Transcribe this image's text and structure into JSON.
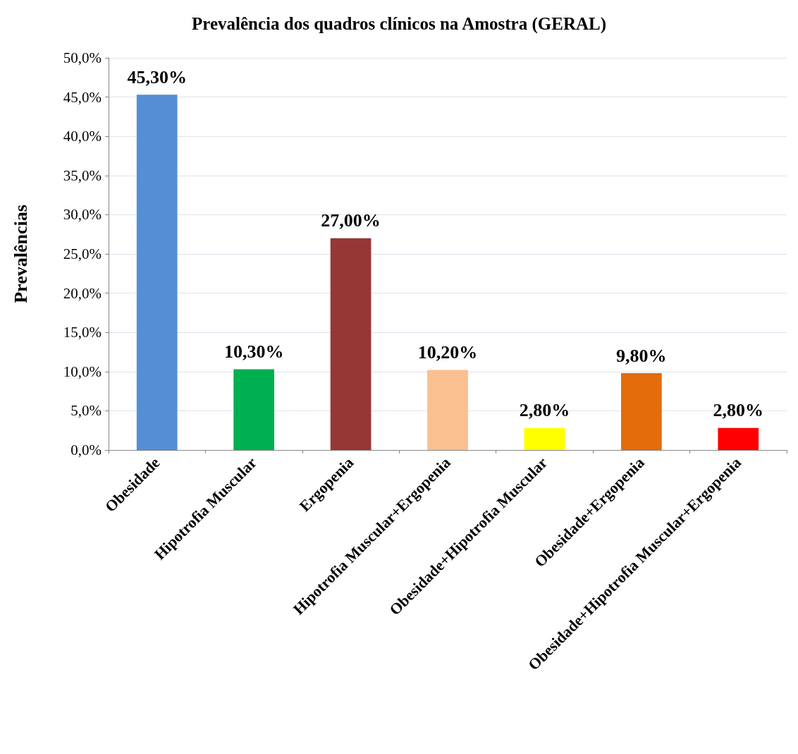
{
  "chart_data": {
    "type": "bar",
    "title": "Prevalência dos quadros clínicos na Amostra (GERAL)",
    "ylabel": "Prevalências",
    "categories": [
      "Obesidade",
      "Hipotrofia Muscular",
      "Ergopenia",
      "Hipotrofia Muscular+Ergopenia",
      "Obesidade+Hipotrofia Muscular",
      "Obesidade+Ergopenia",
      "Obesidade+Hipotrofia Muscular+Ergopenia"
    ],
    "values": [
      45.3,
      10.3,
      27.0,
      10.2,
      2.8,
      9.8,
      2.8
    ],
    "colors": [
      "#558ed5",
      "#00b050",
      "#953735",
      "#fac090",
      "#ffff00",
      "#e46c0a",
      "#ff0000"
    ],
    "value_labels": [
      "45,30%",
      "10,30%",
      "27,00%",
      "10,20%",
      "2,80%",
      "9,80%",
      "2,80%"
    ],
    "ylim": [
      0,
      50
    ],
    "yticks": [
      {
        "value": 0,
        "label": "0,0%"
      },
      {
        "value": 5,
        "label": "5,0%"
      },
      {
        "value": 10,
        "label": "10,0%"
      },
      {
        "value": 15,
        "label": "15,0%"
      },
      {
        "value": 20,
        "label": "20,0%"
      },
      {
        "value": 25,
        "label": "25,0%"
      },
      {
        "value": 30,
        "label": "30,0%"
      },
      {
        "value": 35,
        "label": "35,0%"
      },
      {
        "value": 40,
        "label": "40,0%"
      },
      {
        "value": 45,
        "label": "45,0%"
      },
      {
        "value": 50,
        "label": "50,0%"
      }
    ],
    "grid": "y"
  }
}
